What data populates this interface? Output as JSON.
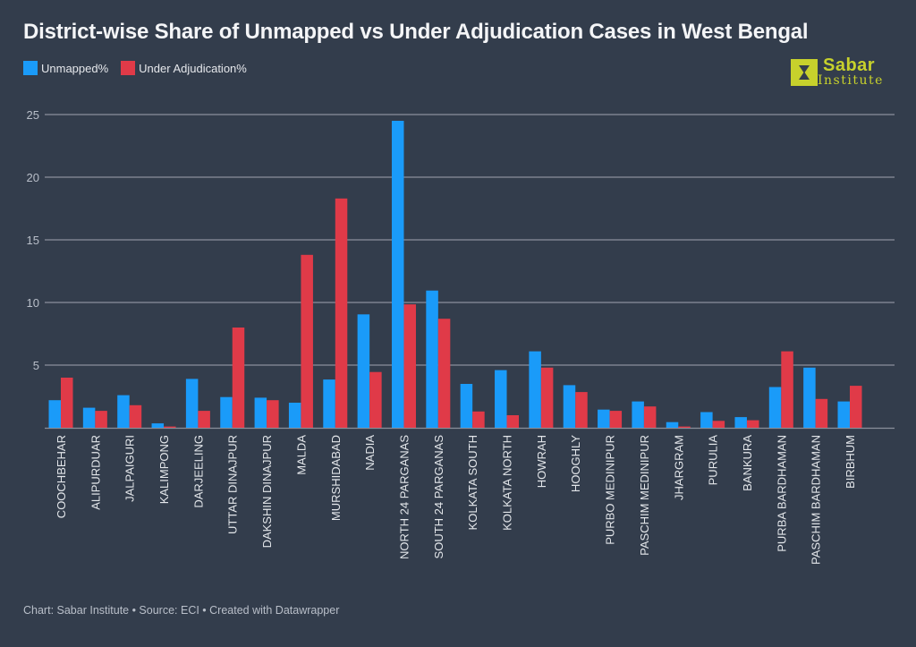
{
  "header": {
    "title": "District-wise Share of Unmapped vs Under Adjudication Cases in West Bengal"
  },
  "logo": {
    "name_top": "Sabar",
    "name_bottom": "Institute",
    "color": "#c7d12c"
  },
  "footer": {
    "credit": "Chart: Sabar Institute • Source: ECI • Created with Datawrapper"
  },
  "colors": {
    "background": "#333d4c",
    "unmapped": "#1a9bf9",
    "under_adjudication": "#e03a48",
    "grid": "#8a909b",
    "tick_text": "#b9bfc9"
  },
  "chart_data": {
    "type": "bar",
    "title": "District-wise Share of Unmapped vs Under Adjudication Cases in West Bengal",
    "xlabel": "",
    "ylabel": "",
    "ylim": [
      0,
      25
    ],
    "yticks": [
      5,
      10,
      15,
      20,
      25
    ],
    "grid": true,
    "legend_position": "top-left",
    "categories": [
      "COOCHBEHAR",
      "ALIPURDUAR",
      "JALPAIGURI",
      "KALIMPONG",
      "DARJEELING",
      "UTTAR DINAJPUR",
      "DAKSHIN DINAJPUR",
      "MALDA",
      "MURSHIDABAD",
      "NADIA",
      "NORTH 24 PARGANAS",
      "SOUTH 24 PARGANAS",
      "KOLKATA SOUTH",
      "KOLKATA NORTH",
      "HOWRAH",
      "HOOGHLY",
      "PURBO MEDINIPUR",
      "PASCHIM MEDINIPUR",
      "JHARGRAM",
      "PURULIA",
      "BANKURA",
      "PURBA BARDHAMAN",
      "PASCHIM BARDHAMAN",
      "BIRBHUM"
    ],
    "series": [
      {
        "name": "Unmapped%",
        "color": "#1a9bf9",
        "values": [
          2.2,
          1.6,
          2.6,
          0.35,
          3.9,
          2.45,
          2.4,
          2.0,
          3.85,
          9.05,
          24.5,
          10.95,
          3.5,
          4.6,
          6.1,
          3.4,
          1.45,
          2.1,
          0.45,
          1.25,
          0.85,
          3.25,
          4.8,
          2.1
        ]
      },
      {
        "name": "Under Adjudication%",
        "color": "#e03a48",
        "values": [
          4.0,
          1.35,
          1.8,
          0.1,
          1.35,
          8.0,
          2.2,
          13.8,
          18.3,
          4.45,
          9.85,
          8.7,
          1.3,
          1.0,
          4.8,
          2.85,
          1.35,
          1.7,
          0.1,
          0.55,
          0.6,
          6.1,
          2.3,
          3.35
        ]
      }
    ]
  }
}
